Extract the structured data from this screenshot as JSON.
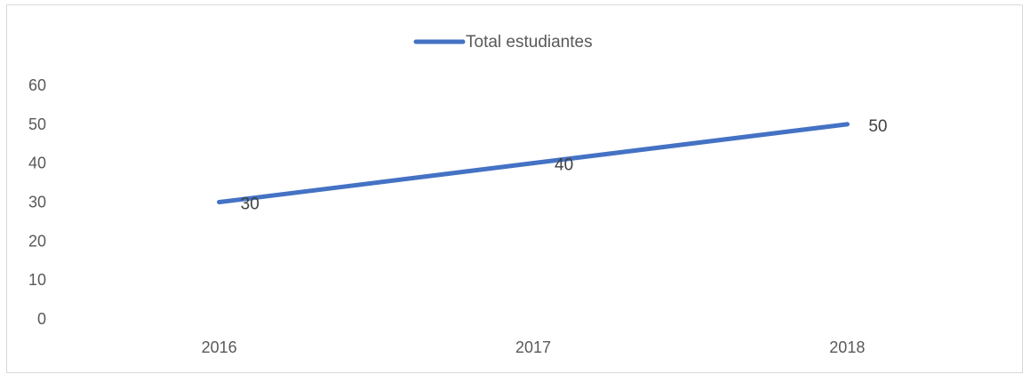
{
  "chart_data": {
    "type": "line",
    "title": "",
    "xlabel": "",
    "ylabel": "",
    "categories": [
      "2016",
      "2017",
      "2018"
    ],
    "series": [
      {
        "name": "Total estudiantes",
        "values": [
          30,
          40,
          50
        ],
        "color": "#4472C4"
      }
    ],
    "ylim": [
      0,
      60
    ],
    "y_ticks": [
      "0",
      "10",
      "20",
      "30",
      "40",
      "50",
      "60"
    ],
    "data_labels": [
      "30",
      "40",
      "50"
    ],
    "grid": false,
    "legend": "top"
  },
  "colors": {
    "frame": "#D9D9D9",
    "series": "#4472C4",
    "tick_text": "#595959",
    "data_label_text": "#404040"
  }
}
